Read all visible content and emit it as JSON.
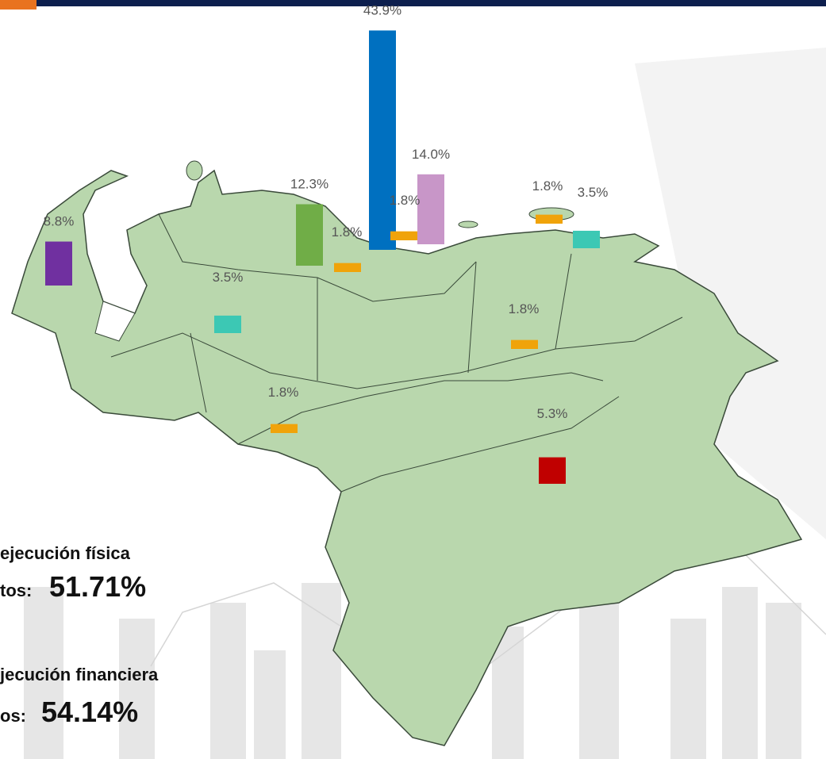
{
  "bars": [
    {
      "label": "8.8%",
      "value": 8.8,
      "color": "#7030a0"
    },
    {
      "label": "12.3%",
      "value": 12.3,
      "color": "#70ad47"
    },
    {
      "label": "43.9%",
      "value": 43.9,
      "color": "#0070c0"
    },
    {
      "label": "14.0%",
      "value": 14.0,
      "color": "#c896c8"
    },
    {
      "label": "1.8%",
      "value": 1.8,
      "color": "#f0a30a"
    },
    {
      "label": "1.8%",
      "value": 1.8,
      "color": "#f0a30a"
    },
    {
      "label": "1.8%",
      "value": 1.8,
      "color": "#f0a30a"
    },
    {
      "label": "3.5%",
      "value": 3.5,
      "color": "#3cc8b4"
    },
    {
      "label": "3.5%",
      "value": 3.5,
      "color": "#3cc8b4"
    },
    {
      "label": "1.8%",
      "value": 1.8,
      "color": "#f0a30a"
    },
    {
      "label": "1.8%",
      "value": 1.8,
      "color": "#f0a30a"
    },
    {
      "label": "5.3%",
      "value": 5.3,
      "color": "#c00000"
    }
  ],
  "stats": [
    {
      "heading": "ejecución física",
      "prefix": "tos:",
      "value": "51.71%"
    },
    {
      "heading": "jecución financiera",
      "prefix": "os:",
      "value": "54.14%"
    }
  ]
}
